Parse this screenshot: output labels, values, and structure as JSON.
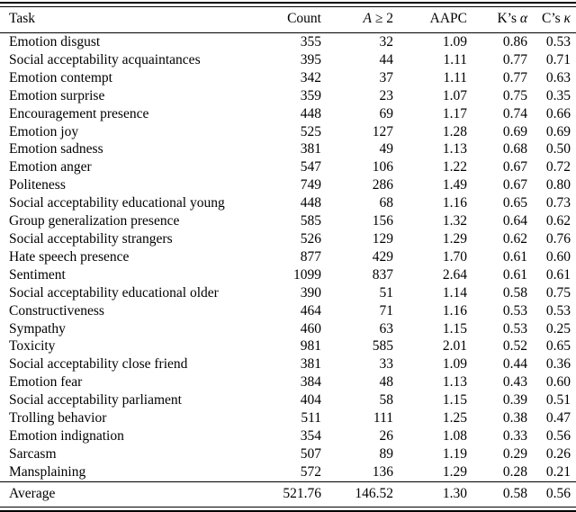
{
  "colors": {
    "text": "#000000",
    "background": "#ffffff",
    "rule": "#000000"
  },
  "table": {
    "columns": [
      {
        "key": "task",
        "align": "left",
        "label_segments": [
          {
            "text": "Task"
          }
        ]
      },
      {
        "key": "count",
        "align": "right",
        "label_segments": [
          {
            "text": "Count"
          }
        ]
      },
      {
        "key": "a-geq-2",
        "align": "right",
        "label_segments": [
          {
            "text": "A",
            "italic": true
          },
          {
            "text": " ≥ 2"
          }
        ]
      },
      {
        "key": "aapc",
        "align": "right",
        "label_segments": [
          {
            "text": "AAPC"
          }
        ]
      },
      {
        "key": "k-alpha",
        "align": "right",
        "label_segments": [
          {
            "text": "K’s "
          },
          {
            "text": "α",
            "italic": true
          }
        ]
      },
      {
        "key": "c-kappa",
        "align": "right",
        "label_segments": [
          {
            "text": "C’s "
          },
          {
            "text": "κ",
            "italic": true
          }
        ]
      }
    ],
    "rows": [
      [
        "Emotion disgust",
        "355",
        "32",
        "1.09",
        "0.86",
        "0.53"
      ],
      [
        "Social acceptability acquaintances",
        "395",
        "44",
        "1.11",
        "0.77",
        "0.71"
      ],
      [
        "Emotion contempt",
        "342",
        "37",
        "1.11",
        "0.77",
        "0.63"
      ],
      [
        "Emotion surprise",
        "359",
        "23",
        "1.07",
        "0.75",
        "0.35"
      ],
      [
        "Encouragement presence",
        "448",
        "69",
        "1.17",
        "0.74",
        "0.66"
      ],
      [
        "Emotion joy",
        "525",
        "127",
        "1.28",
        "0.69",
        "0.69"
      ],
      [
        "Emotion sadness",
        "381",
        "49",
        "1.13",
        "0.68",
        "0.50"
      ],
      [
        "Emotion anger",
        "547",
        "106",
        "1.22",
        "0.67",
        "0.72"
      ],
      [
        "Politeness",
        "749",
        "286",
        "1.49",
        "0.67",
        "0.80"
      ],
      [
        "Social acceptability educational young",
        "448",
        "68",
        "1.16",
        "0.65",
        "0.73"
      ],
      [
        "Group generalization presence",
        "585",
        "156",
        "1.32",
        "0.64",
        "0.62"
      ],
      [
        "Social acceptability strangers",
        "526",
        "129",
        "1.29",
        "0.62",
        "0.76"
      ],
      [
        "Hate speech presence",
        "877",
        "429",
        "1.70",
        "0.61",
        "0.60"
      ],
      [
        "Sentiment",
        "1099",
        "837",
        "2.64",
        "0.61",
        "0.61"
      ],
      [
        "Social acceptability educational older",
        "390",
        "51",
        "1.14",
        "0.58",
        "0.75"
      ],
      [
        "Constructiveness",
        "464",
        "71",
        "1.16",
        "0.53",
        "0.53"
      ],
      [
        "Sympathy",
        "460",
        "63",
        "1.15",
        "0.53",
        "0.25"
      ],
      [
        "Toxicity",
        "981",
        "585",
        "2.01",
        "0.52",
        "0.65"
      ],
      [
        "Social acceptability close friend",
        "381",
        "33",
        "1.09",
        "0.44",
        "0.36"
      ],
      [
        "Emotion fear",
        "384",
        "48",
        "1.13",
        "0.43",
        "0.60"
      ],
      [
        "Social acceptability parliament",
        "404",
        "58",
        "1.15",
        "0.39",
        "0.51"
      ],
      [
        "Trolling behavior",
        "511",
        "111",
        "1.25",
        "0.38",
        "0.47"
      ],
      [
        "Emotion indignation",
        "354",
        "26",
        "1.08",
        "0.33",
        "0.56"
      ],
      [
        "Sarcasm",
        "507",
        "89",
        "1.19",
        "0.29",
        "0.26"
      ],
      [
        "Mansplaining",
        "572",
        "136",
        "1.29",
        "0.28",
        "0.21"
      ]
    ],
    "footer_row": [
      "Average",
      "521.76",
      "146.52",
      "1.30",
      "0.58",
      "0.56"
    ]
  }
}
